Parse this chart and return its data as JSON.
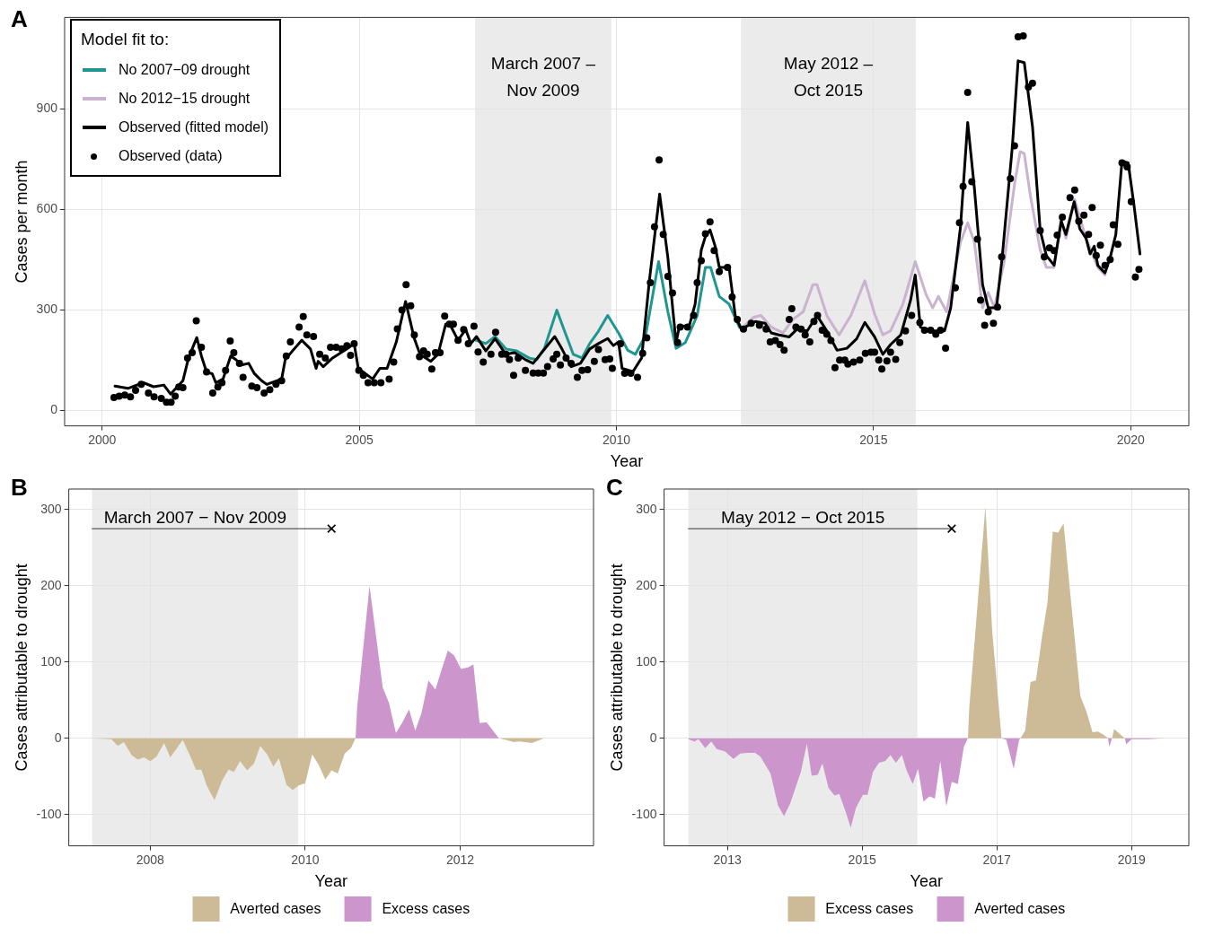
{
  "chart_data": [
    {
      "type": "line",
      "title": "A",
      "xlabel": "Year",
      "ylabel": "Cases per month",
      "legend_title": "Model fit to:",
      "legend": "top left",
      "grid": true,
      "xlim": [
        1999.27,
        2021.13
      ],
      "ylim": [
        -47,
        1174
      ],
      "xticks": [
        2000,
        2005,
        2010,
        2015,
        2020
      ],
      "yticks": [
        0,
        300,
        600,
        900
      ],
      "bands": [
        {
          "axis": "x",
          "from": 2007.25,
          "to": 2009.9,
          "label": "March 2007 –\nNov 2009",
          "color": "#ebebeb"
        },
        {
          "axis": "x",
          "from": 2012.42,
          "to": 2015.82,
          "label": "May 2012 –\nOct 2015",
          "color": "#ebebeb"
        }
      ],
      "series": [
        {
          "name": "No 2007−09 drought",
          "color": "#1f9690",
          "x": [
            2007.25,
            2007.46,
            2007.64,
            2007.85,
            2008.06,
            2008.3,
            2008.45,
            2008.6,
            2008.84,
            2008.98,
            2009.16,
            2009.33,
            2009.48,
            2009.65,
            2009.83,
            2010.04,
            2010.22,
            2010.37,
            2010.57,
            2010.82,
            2011.0,
            2011.16,
            2011.34,
            2011.57,
            2011.73,
            2011.83,
            2012.0,
            2012.19,
            2012.39,
            2012.46
          ],
          "values": [
            210,
            199,
            220,
            183,
            177,
            156,
            151,
            185,
            299,
            241,
            167,
            156,
            199,
            236,
            283,
            231,
            179,
            167,
            225,
            444,
            294,
            185,
            202,
            283,
            427,
            427,
            340,
            317,
            248,
            242
          ]
        },
        {
          "name": "No 2012−15 drought",
          "color": "#c9b3cf",
          "x": [
            2012.42,
            2012.66,
            2012.81,
            2013.01,
            2013.24,
            2013.43,
            2013.63,
            2013.82,
            2013.9,
            2014.09,
            2014.33,
            2014.56,
            2014.83,
            2015.02,
            2015.18,
            2015.33,
            2015.57,
            2015.81,
            2016.02,
            2016.15,
            2016.26,
            2016.42,
            2016.69,
            2016.83,
            2016.96,
            2017.12,
            2017.23,
            2017.35,
            2017.54,
            2017.74,
            2017.85,
            2017.93,
            2018.05,
            2018.24,
            2018.36,
            2018.51,
            2018.64,
            2018.74,
            2018.91,
            2019.13,
            2019.36,
            2019.5
          ],
          "values": [
            242,
            277,
            283,
            248,
            231,
            271,
            294,
            375,
            375,
            283,
            225,
            283,
            387,
            288,
            225,
            237,
            317,
            444,
            346,
            306,
            340,
            294,
            502,
            560,
            502,
            306,
            352,
            306,
            444,
            675,
            773,
            767,
            640,
            479,
            427,
            427,
            571,
            514,
            629,
            514,
            427,
            404
          ]
        },
        {
          "name": "Observed (fitted model)",
          "color": "#000000",
          "x": [
            2000.25,
            2000.5,
            2000.8,
            2001.0,
            2001.2,
            2001.33,
            2001.57,
            2001.68,
            2001.84,
            2001.93,
            2002.03,
            2002.14,
            2002.21,
            2002.35,
            2002.5,
            2002.6,
            2002.71,
            2002.85,
            2002.96,
            2003.1,
            2003.2,
            2003.49,
            2003.56,
            2003.7,
            2003.88,
            2004.05,
            2004.16,
            2004.2,
            2004.3,
            2004.48,
            2004.76,
            2004.9,
            2004.98,
            2005.12,
            2005.26,
            2005.4,
            2005.54,
            2005.72,
            2005.9,
            2006.07,
            2006.18,
            2006.39,
            2006.53,
            2006.68,
            2006.78,
            2006.92,
            2007.07,
            2007.17,
            2007.28,
            2007.46,
            2007.64,
            2007.85,
            2008.02,
            2008.23,
            2008.38,
            2008.52,
            2008.8,
            2008.94,
            2009.12,
            2009.3,
            2009.48,
            2009.65,
            2009.83,
            2009.94,
            2010.04,
            2010.11,
            2010.32,
            2010.49,
            2010.64,
            2010.84,
            2011.0,
            2011.1,
            2011.16,
            2011.22,
            2011.42,
            2011.53,
            2011.65,
            2011.73,
            2011.82,
            2011.92,
            2012.0,
            2012.19,
            2012.31,
            2012.43,
            2012.7,
            2012.89,
            2013.01,
            2013.16,
            2013.36,
            2013.51,
            2013.71,
            2013.9,
            2014.09,
            2014.29,
            2014.48,
            2014.67,
            2014.83,
            2015.02,
            2015.18,
            2015.33,
            2015.53,
            2015.72,
            2015.81,
            2015.91,
            2016.11,
            2016.38,
            2016.5,
            2016.69,
            2016.83,
            2016.96,
            2017.12,
            2017.23,
            2017.39,
            2017.5,
            2017.7,
            2017.81,
            2017.93,
            2018.09,
            2018.24,
            2018.36,
            2018.51,
            2018.65,
            2018.74,
            2018.9,
            2019.01,
            2019.13,
            2019.21,
            2019.29,
            2019.36,
            2019.5,
            2019.6,
            2019.71,
            2019.83,
            2019.95,
            2020.06,
            2020.18
          ],
          "values": [
            72,
            65,
            82,
            70,
            75,
            48,
            88,
            156,
            217,
            162,
            114,
            109,
            82,
            93,
            162,
            151,
            135,
            140,
            109,
            88,
            77,
            93,
            151,
            177,
            209,
            183,
            125,
            146,
            130,
            156,
            183,
            199,
            125,
            109,
            93,
            125,
            125,
            204,
            325,
            214,
            167,
            146,
            167,
            257,
            251,
            209,
            241,
            199,
            220,
            177,
            214,
            167,
            172,
            151,
            140,
            167,
            220,
            183,
            130,
            140,
            183,
            199,
            214,
            193,
            204,
            125,
            115,
            156,
            387,
            646,
            456,
            294,
            202,
            248,
            254,
            317,
            479,
            519,
            539,
            490,
            427,
            427,
            283,
            242,
            265,
            260,
            231,
            225,
            219,
            242,
            237,
            283,
            237,
            179,
            185,
            213,
            262,
            219,
            167,
            196,
            225,
            329,
            404,
            248,
            237,
            237,
            306,
            548,
            860,
            664,
            375,
            306,
            306,
            456,
            791,
            1044,
            1039,
            848,
            537,
            462,
            433,
            565,
            525,
            623,
            542,
            514,
            467,
            490,
            433,
            410,
            456,
            525,
            744,
            739,
            617,
            467
          ]
        },
        {
          "name": "Observed (data)",
          "type": "scatter",
          "marker": "circle",
          "color": "#000000",
          "x": [
            2000.23,
            2000.33,
            2000.44,
            2000.55,
            2000.65,
            2000.76,
            2000.9,
            2001.01,
            2001.15,
            2001.25,
            2001.34,
            2001.42,
            2001.49,
            2001.57,
            2001.66,
            2001.75,
            2001.83,
            2001.93,
            2002.03,
            2002.15,
            2002.25,
            2002.33,
            2002.4,
            2002.49,
            2002.56,
            2002.67,
            2002.74,
            2002.91,
            2003.01,
            2003.15,
            2003.26,
            2003.38,
            2003.49,
            2003.58,
            2003.66,
            2003.83,
            2003.91,
            2003.98,
            2004.11,
            2004.23,
            2004.34,
            2004.44,
            2004.55,
            2004.66,
            2004.76,
            2004.83,
            2004.9,
            2004.99,
            2005.08,
            2005.17,
            2005.29,
            2005.42,
            2005.58,
            2005.67,
            2005.74,
            2005.83,
            2005.91,
            2006.0,
            2006.07,
            2006.17,
            2006.25,
            2006.32,
            2006.41,
            2006.48,
            2006.57,
            2006.66,
            2006.75,
            2006.83,
            2006.92,
            2007.03,
            2007.12,
            2007.23,
            2007.31,
            2007.41,
            2007.56,
            2007.65,
            2007.77,
            2007.85,
            2007.92,
            2008.0,
            2008.09,
            2008.23,
            2008.38,
            2008.48,
            2008.58,
            2008.66,
            2008.77,
            2008.84,
            2008.91,
            2009.02,
            2009.12,
            2009.24,
            2009.33,
            2009.44,
            2009.57,
            2009.65,
            2009.78,
            2009.87,
            2009.92,
            2010.08,
            2010.16,
            2010.28,
            2010.41,
            2010.51,
            2010.59,
            2010.66,
            2010.74,
            2010.83,
            2010.91,
            2011.0,
            2011.09,
            2011.19,
            2011.24,
            2011.38,
            2011.5,
            2011.57,
            2011.65,
            2011.73,
            2011.82,
            2011.9,
            2012.0,
            2012.16,
            2012.25,
            2012.35,
            2012.47,
            2012.62,
            2012.78,
            2012.91,
            2012.99,
            2013.09,
            2013.18,
            2013.26,
            2013.36,
            2013.41,
            2013.49,
            2013.59,
            2013.67,
            2013.76,
            2013.84,
            2013.91,
            2014.0,
            2014.09,
            2014.17,
            2014.25,
            2014.34,
            2014.44,
            2014.5,
            2014.61,
            2014.73,
            2014.84,
            2014.95,
            2015.02,
            2015.1,
            2015.16,
            2015.26,
            2015.33,
            2015.43,
            2015.51,
            2015.62,
            2015.74,
            2015.9,
            2015.99,
            2016.11,
            2016.21,
            2016.3,
            2016.4,
            2016.59,
            2016.67,
            2016.74,
            2016.83,
            2016.91,
            2017.02,
            2017.08,
            2017.16,
            2017.23,
            2017.33,
            2017.41,
            2017.49,
            2017.66,
            2017.74,
            2017.81,
            2017.91,
            2018.01,
            2018.09,
            2018.24,
            2018.32,
            2018.42,
            2018.51,
            2018.57,
            2018.67,
            2018.82,
            2018.91,
            2018.99,
            2019.09,
            2019.18,
            2019.25,
            2019.33,
            2019.41,
            2019.5,
            2019.6,
            2019.66,
            2019.75,
            2019.83,
            2019.93,
            2020.01,
            2020.09,
            2020.16
          ],
          "values": [
            38,
            42,
            45,
            40,
            59,
            77,
            51,
            40,
            35,
            24,
            24,
            42,
            69,
            67,
            156,
            172,
            267,
            188,
            114,
            51,
            69,
            82,
            119,
            207,
            172,
            140,
            98,
            72,
            67,
            51,
            61,
            77,
            88,
            162,
            204,
            248,
            280,
            225,
            220,
            167,
            156,
            188,
            188,
            183,
            193,
            164,
            199,
            119,
            104,
            82,
            82,
            82,
            93,
            144,
            243,
            299,
            375,
            312,
            225,
            160,
            177,
            167,
            123,
            172,
            172,
            281,
            257,
            257,
            209,
            241,
            199,
            251,
            174,
            144,
            167,
            233,
            167,
            167,
            151,
            104,
            156,
            119,
            111,
            111,
            111,
            130,
            153,
            167,
            135,
            156,
            140,
            98,
            119,
            121,
            146,
            181,
            151,
            153,
            125,
            199,
            110,
            110,
            98,
            170,
            216,
            381,
            548,
            748,
            525,
            400,
            350,
            202,
            248,
            248,
            283,
            381,
            447,
            527,
            563,
            477,
            414,
            427,
            338,
            271,
            242,
            260,
            254,
            242,
            204,
            208,
            196,
            179,
            271,
            303,
            248,
            242,
            225,
            204,
            265,
            283,
            239,
            227,
            208,
            127,
            150,
            150,
            138,
            144,
            150,
            170,
            173,
            173,
            150,
            123,
            147,
            173,
            152,
            202,
            237,
            283,
            262,
            239,
            239,
            227,
            239,
            185,
            366,
            560,
            669,
            950,
            683,
            511,
            329,
            254,
            294,
            260,
            308,
            458,
            692,
            790,
            1116,
            1119,
            966,
            977,
            537,
            458,
            485,
            477,
            523,
            577,
            635,
            658,
            565,
            583,
            525,
            606,
            462,
            493,
            433,
            450,
            554,
            496,
            739,
            727,
            623,
            398,
            421
          ]
        }
      ]
    },
    {
      "type": "area",
      "title": "B",
      "xlabel": "Year",
      "ylabel": "Cases attributable to drought",
      "legend": "bottom",
      "grid": true,
      "xlim": [
        2006.95,
        2013.72
      ],
      "ylim": [
        -141,
        327
      ],
      "xticks": [
        2008,
        2010,
        2012
      ],
      "yticks": [
        -100,
        0,
        100,
        200,
        300
      ],
      "bands": [
        {
          "axis": "x",
          "from": 2007.25,
          "to": 2009.91,
          "label": "March 2007 − Nov 2009",
          "color": "#ebebeb"
        }
      ],
      "series": [
        {
          "name": "Averted cases",
          "color": "#ccbb96",
          "x": [
            2007.25,
            2007.5,
            2007.58,
            2007.66,
            2007.76,
            2007.84,
            2007.92,
            2008.0,
            2008.08,
            2008.18,
            2008.26,
            2008.42,
            2008.52,
            2008.59,
            2008.66,
            2008.73,
            2008.83,
            2008.93,
            2009.01,
            2009.08,
            2009.16,
            2009.25,
            2009.34,
            2009.42,
            2009.51,
            2009.59,
            2009.66,
            2009.76,
            2009.84,
            2009.91,
            2010.0,
            2010.09,
            2010.17,
            2010.26,
            2010.34,
            2010.42,
            2010.51,
            2010.59,
            2010.65,
            2011.5,
            2012.5,
            2012.59,
            2012.69,
            2012.76,
            2012.93,
            2013.08,
            2013.43
          ],
          "values": [
            0,
            -1,
            -10,
            -5,
            -22,
            -28,
            -25,
            -30,
            -24,
            -6,
            -25,
            -2,
            -24,
            -41,
            -41,
            -62,
            -81,
            -55,
            -41,
            -44,
            -30,
            -42,
            -33,
            -10,
            -21,
            -37,
            -26,
            -61,
            -68,
            -62,
            -59,
            -21,
            -34,
            -54,
            -42,
            -46,
            -20,
            -13,
            0,
            null,
            0,
            -2,
            -5,
            -4,
            -6,
            0,
            0
          ]
        },
        {
          "type": "line",
          "color": "#333333",
          "x": [
            2007.25,
            2010.34
          ],
          "values": [
            275,
            275
          ]
        },
        {
          "type": "scatter",
          "marker": "cross",
          "color": "#000000",
          "x": [
            2010.34
          ],
          "values": [
            275
          ]
        },
        {
          "name": "Excess cases",
          "color": "#cc95cc",
          "x": [
            2010.65,
            2010.67,
            2010.83,
            2011.0,
            2011.08,
            2011.17,
            2011.25,
            2011.34,
            2011.42,
            2011.5,
            2011.59,
            2011.68,
            2011.76,
            2011.84,
            2011.92,
            2012.01,
            2012.1,
            2012.17,
            2012.25,
            2012.34,
            2012.5
          ],
          "values": [
            0,
            40,
            200,
            67,
            47,
            7,
            20,
            38,
            10,
            33,
            76,
            64,
            90,
            115,
            109,
            91,
            93,
            97,
            20,
            21,
            0
          ]
        }
      ]
    },
    {
      "type": "area",
      "title": "C",
      "xlabel": "Year",
      "ylabel": "Cases attributable to drought",
      "legend": "bottom",
      "grid": true,
      "xlim": [
        2012.06,
        2019.85
      ],
      "ylim": [
        -141,
        327
      ],
      "xticks": [
        2013,
        2015,
        2017,
        2019
      ],
      "yticks": [
        -100,
        0,
        100,
        200,
        300
      ],
      "bands": [
        {
          "axis": "x",
          "from": 2012.42,
          "to": 2015.82,
          "label": "May 2012 − Oct 2015",
          "color": "#ebebeb"
        }
      ],
      "series": [
        {
          "name": "Excess cases",
          "color": "#ccbb96",
          "x": [
            2016.57,
            2016.59,
            2016.83,
            2016.93,
            2017.07,
            2017.2,
            2017.35,
            2017.42,
            2017.5,
            2017.58,
            2017.67,
            2017.75,
            2017.83,
            2017.91,
            2017.99,
            2018.09,
            2018.24,
            2018.33,
            2018.42,
            2018.5,
            2018.58,
            2018.65,
            2018.7,
            2018.71,
            2018.74,
            2018.9
          ],
          "values": [
            0,
            40,
            304,
            142,
            0,
            null,
            0,
            10,
            74,
            76,
            133,
            177,
            271,
            270,
            282,
            190,
            55,
            35,
            8,
            9,
            5,
            0,
            null,
            0,
            12,
            0
          ]
        },
        {
          "type": "line",
          "color": "#333333",
          "x": [
            2012.42,
            2016.33
          ],
          "values": [
            275,
            275
          ]
        },
        {
          "type": "scatter",
          "marker": "cross",
          "color": "#000000",
          "x": [
            2016.33
          ],
          "values": [
            275
          ]
        },
        {
          "name": "Averted cases",
          "color": "#cc95cc",
          "x": [
            2012.42,
            2012.51,
            2012.57,
            2012.67,
            2012.76,
            2012.84,
            2012.96,
            2013.09,
            2013.19,
            2013.29,
            2013.41,
            2013.49,
            2013.64,
            2013.75,
            2013.84,
            2013.93,
            2014.09,
            2014.18,
            2014.25,
            2014.34,
            2014.41,
            2014.5,
            2014.59,
            2014.66,
            2014.75,
            2014.83,
            2014.91,
            2015.01,
            2015.08,
            2015.16,
            2015.25,
            2015.34,
            2015.42,
            2015.5,
            2015.59,
            2015.66,
            2015.75,
            2015.83,
            2015.91,
            2016.0,
            2016.08,
            2016.16,
            2016.25,
            2016.33,
            2016.42,
            2016.51,
            2016.57,
            2016.8,
            2017.07,
            2017.14,
            2017.25,
            2017.33,
            2017.35,
            2018.0,
            2018.65,
            2018.67,
            2018.71,
            2018.8,
            2018.9,
            2018.92,
            2019.0,
            2019.24,
            2019.49
          ],
          "values": [
            -1,
            -4,
            -1,
            -13,
            -4,
            -14,
            -17,
            -27,
            -20,
            -19,
            -19,
            -24,
            -46,
            -88,
            -102,
            -86,
            -44,
            -7,
            -49,
            -48,
            -33,
            -65,
            -75,
            -73,
            -95,
            -117,
            -91,
            -74,
            -74,
            -44,
            -32,
            -30,
            -22,
            -32,
            -22,
            -42,
            -60,
            -40,
            -83,
            -76,
            -79,
            -30,
            -89,
            -57,
            -60,
            -11,
            0,
            null,
            0,
            -2,
            -40,
            -2,
            0,
            null,
            0,
            -11,
            0,
            null,
            0,
            -8,
            -1,
            -1,
            0
          ]
        }
      ]
    }
  ]
}
